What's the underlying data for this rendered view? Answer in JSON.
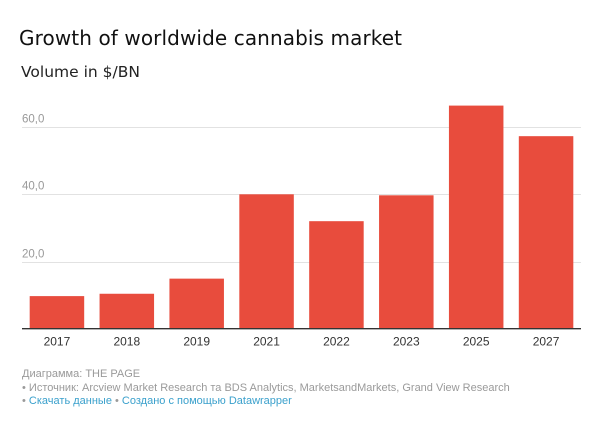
{
  "colors": {
    "bar": "#e84c3d",
    "grid": "#e2e2e2",
    "axis": "#333333",
    "tick_text": "#999999",
    "x_text": "#333333",
    "link": "#3aa0cc"
  },
  "chart_data": {
    "type": "bar",
    "title": "Growth of worldwide cannabis market",
    "subtitle": "Volume in $/BN",
    "xlabel": "",
    "ylabel": "",
    "categories": [
      "2017",
      "2018",
      "2019",
      "2021",
      "2022",
      "2023",
      "2025",
      "2027"
    ],
    "values": [
      9.7,
      10.4,
      14.9,
      40.0,
      32.0,
      39.7,
      66.4,
      57.3
    ],
    "ylim": [
      0,
      70
    ],
    "yticks": [
      20,
      40,
      60
    ],
    "ytick_labels": [
      "20,0",
      "40,0",
      "60,0"
    ],
    "grid": true,
    "legend": "none"
  },
  "footer": {
    "credit": "Диаграмма: THE PAGE",
    "source": "Источник: Arcview Market Research та BDS Analytics, MarketsandMarkets, Grand View Research",
    "download_link": "Скачать данные",
    "made_with_link": "Создано с помощью Datawrapper",
    "bullet": "•"
  }
}
